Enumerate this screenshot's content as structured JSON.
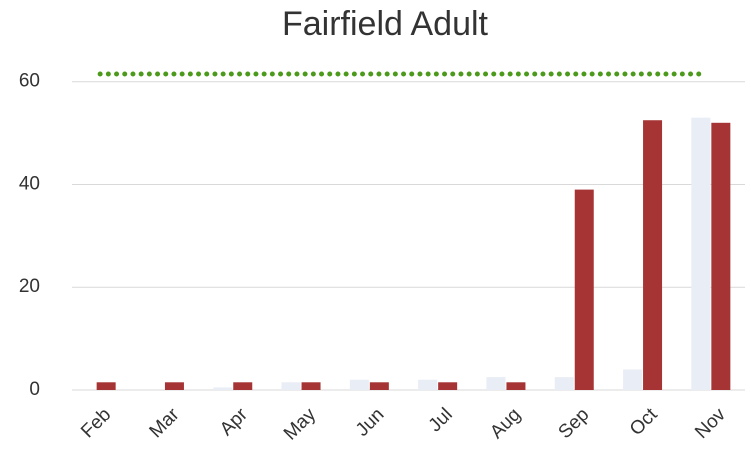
{
  "chart_data": {
    "type": "bar",
    "title": "Fairfield Adult",
    "categories": [
      "Feb",
      "Mar",
      "Apr",
      "May",
      "Jun",
      "Jul",
      "Aug",
      "Sep",
      "Oct",
      "Nov"
    ],
    "series": [
      {
        "color": "#e9edf5",
        "values": [
          0,
          0,
          0.5,
          1.5,
          2,
          2,
          2.5,
          2.5,
          4,
          53
        ]
      },
      {
        "color": "#a63434",
        "values": [
          1.5,
          1.5,
          1.5,
          1.5,
          1.5,
          1.5,
          1.5,
          39,
          52.5,
          52
        ]
      }
    ],
    "target_line": {
      "value": 61.5,
      "color": "#4c9a1c"
    },
    "ylim": [
      0,
      65
    ],
    "yticks": [
      0,
      20,
      40,
      60
    ],
    "grid": true
  }
}
